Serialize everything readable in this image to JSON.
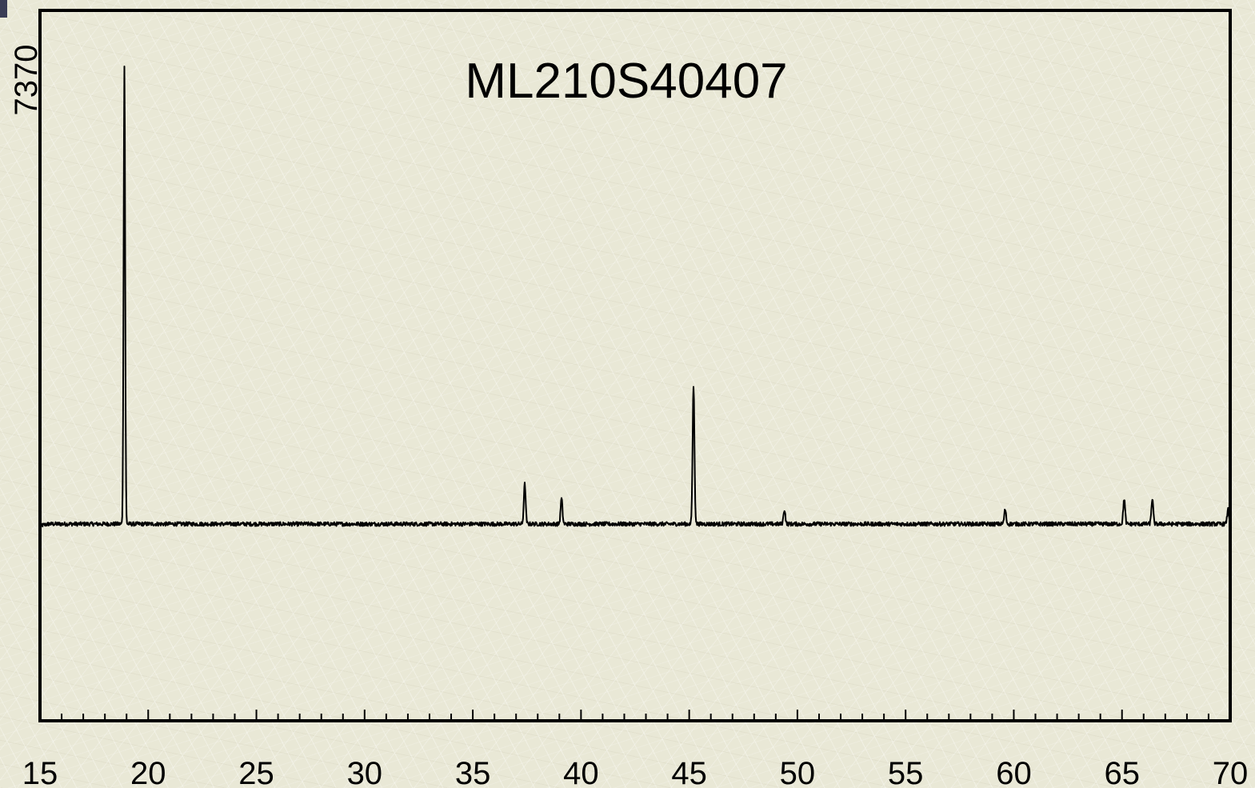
{
  "chart_data": {
    "type": "line",
    "title": "ML210S40407",
    "xlabel": "",
    "ylabel": "",
    "y_max_label": "7370",
    "xlim": [
      15,
      70
    ],
    "ylim": [
      0,
      7370
    ],
    "x_ticks": [
      "15",
      "20",
      "25",
      "30",
      "35",
      "40",
      "45",
      "50",
      "55",
      "60",
      "65",
      "70"
    ],
    "grid": false,
    "baseline": 1050,
    "series": [
      {
        "peaks": [
          {
            "x": 18.9,
            "y": 7370
          },
          {
            "x": 37.4,
            "y": 1600
          },
          {
            "x": 39.1,
            "y": 1400
          },
          {
            "x": 45.2,
            "y": 2960
          },
          {
            "x": 49.4,
            "y": 1250
          },
          {
            "x": 59.6,
            "y": 1250
          },
          {
            "x": 65.1,
            "y": 1400
          },
          {
            "x": 66.4,
            "y": 1400
          },
          {
            "x": 69.9,
            "y": 1250
          }
        ]
      }
    ],
    "line_color": "#000000"
  }
}
